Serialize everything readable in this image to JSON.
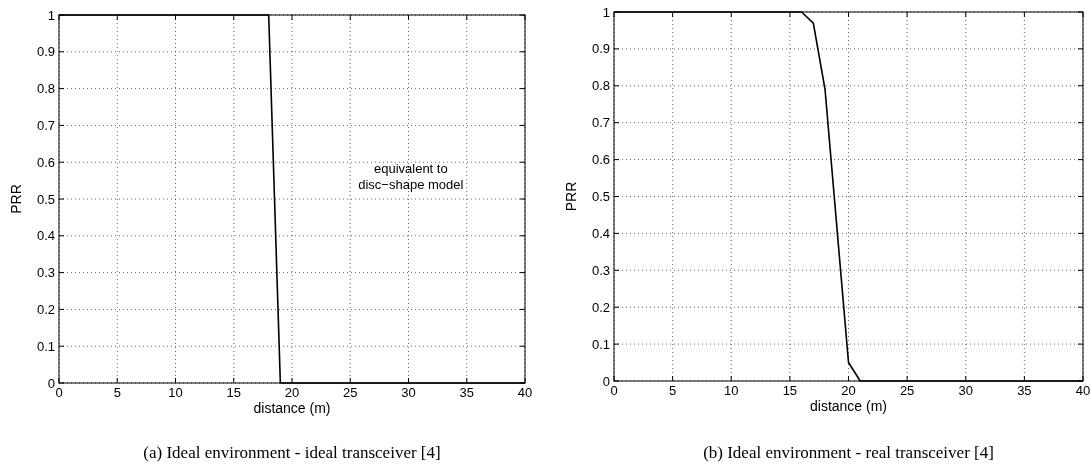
{
  "chart_data": [
    {
      "type": "line",
      "title": "(a) Ideal environment - ideal transceiver [4]",
      "xlabel": "distance (m)",
      "ylabel": "PRR",
      "xlim": [
        0,
        40
      ],
      "xticks": [
        0,
        5,
        10,
        15,
        20,
        25,
        30,
        35,
        40
      ],
      "ylim": [
        0,
        1
      ],
      "yticks": [
        0,
        0.1,
        0.2,
        0.3,
        0.4,
        0.5,
        0.6,
        0.7,
        0.8,
        0.9,
        1
      ],
      "grid": true,
      "annotations": [
        "equivalent to\ndisc−shape model"
      ],
      "series": [
        {
          "color": "#000000",
          "x": [
            0,
            18,
            19,
            40
          ],
          "values": [
            1,
            1,
            0,
            0
          ]
        }
      ]
    },
    {
      "type": "line",
      "title": "(b) Ideal environment - real transceiver [4]",
      "xlabel": "distance (m)",
      "ylabel": "PRR",
      "xlim": [
        0,
        40
      ],
      "xticks": [
        0,
        5,
        10,
        15,
        20,
        25,
        30,
        35,
        40
      ],
      "ylim": [
        0,
        1
      ],
      "yticks": [
        0,
        0.1,
        0.2,
        0.3,
        0.4,
        0.5,
        0.6,
        0.7,
        0.8,
        0.9,
        1
      ],
      "grid": true,
      "series": [
        {
          "color": "#000000",
          "x": [
            0,
            16,
            17,
            18,
            20,
            21,
            40
          ],
          "values": [
            1,
            1,
            0.97,
            0.79,
            0.05,
            0,
            0
          ]
        }
      ]
    }
  ]
}
